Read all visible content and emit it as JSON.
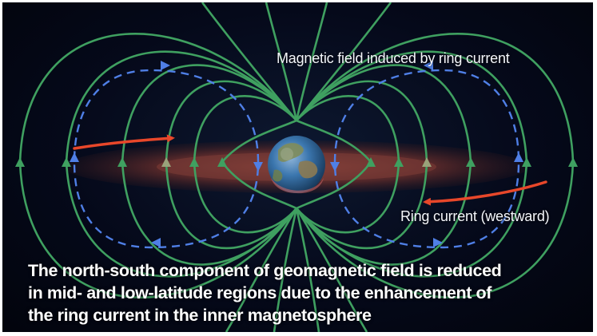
{
  "labels": {
    "induced_field": "Magnetic field induced by ring current",
    "ring_current": "Ring current (westward)"
  },
  "caption": {
    "line1": "The north-south component of geomagnetic field is reduced",
    "line2": "in mid- and low-latitude regions due to the enhancement of",
    "line3": "the ring current in the inner magnetosphere"
  },
  "colors": {
    "background": "#05091a",
    "field_line": "#3fa060",
    "induced_field_line": "#4f7fe6",
    "ring_current_band": "#7a3a34",
    "ring_current_arrow": "#e8472a",
    "earth_ocean": "#2f6fa8",
    "earth_land": "#7f8c5a"
  },
  "icons": {
    "earth": "earth-globe-icon",
    "field_arrow": "arrow-up-icon",
    "ring_arrow": "curved-arrow-icon"
  }
}
